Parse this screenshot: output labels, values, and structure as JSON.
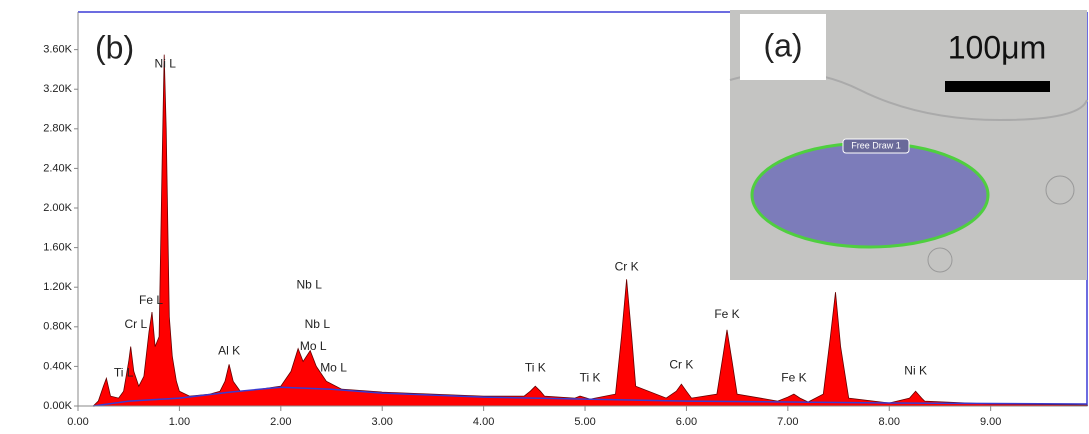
{
  "chart_data": {
    "type": "spectrum",
    "panel_label": "(b)",
    "xlim": [
      0,
      9.95
    ],
    "ylim": [
      0,
      3.98
    ],
    "xticks": [
      {
        "value": 0,
        "label": "0.00"
      },
      {
        "value": 1,
        "label": "1.00"
      },
      {
        "value": 2,
        "label": "2.00"
      },
      {
        "value": 3,
        "label": "3.00"
      },
      {
        "value": 4,
        "label": "4.00"
      },
      {
        "value": 5,
        "label": "5.00"
      },
      {
        "value": 6,
        "label": "6.00"
      },
      {
        "value": 7,
        "label": "7.00"
      },
      {
        "value": 8,
        "label": "8.00"
      },
      {
        "value": 9,
        "label": "9.00"
      }
    ],
    "yticks": [
      {
        "value": 0,
        "label": "0.00K"
      },
      {
        "value": 0.4,
        "label": "0.40K"
      },
      {
        "value": 0.8,
        "label": "0.80K"
      },
      {
        "value": 1.2,
        "label": "1.20K"
      },
      {
        "value": 1.6,
        "label": "1.60K"
      },
      {
        "value": 2.0,
        "label": "2.00K"
      },
      {
        "value": 2.4,
        "label": "2.40K"
      },
      {
        "value": 2.8,
        "label": "2.80K"
      },
      {
        "value": 3.2,
        "label": "3.20K"
      },
      {
        "value": 3.6,
        "label": "3.60K"
      }
    ],
    "series": [
      {
        "color": "#ff0000",
        "fill": true,
        "x": [
          0.15,
          0.2,
          0.25,
          0.28,
          0.32,
          0.4,
          0.45,
          0.5,
          0.52,
          0.55,
          0.6,
          0.65,
          0.7,
          0.73,
          0.76,
          0.8,
          0.83,
          0.85,
          0.87,
          0.9,
          0.93,
          0.97,
          1.0,
          1.1,
          1.2,
          1.3,
          1.4,
          1.45,
          1.49,
          1.53,
          1.6,
          1.8,
          2.0,
          2.1,
          2.17,
          2.22,
          2.29,
          2.35,
          2.45,
          2.6,
          3.0,
          3.5,
          4.0,
          4.4,
          4.46,
          4.51,
          4.56,
          4.6,
          4.9,
          4.95,
          5.05,
          5.3,
          5.36,
          5.41,
          5.46,
          5.5,
          5.8,
          5.9,
          5.95,
          6.0,
          6.05,
          6.3,
          6.36,
          6.4,
          6.45,
          6.5,
          6.9,
          7.0,
          7.06,
          7.12,
          7.2,
          7.35,
          7.42,
          7.47,
          7.52,
          7.6,
          8.0,
          8.2,
          8.26,
          8.32,
          8.35,
          9.0,
          9.95
        ],
        "values": [
          0,
          0.05,
          0.2,
          0.28,
          0.1,
          0.08,
          0.15,
          0.45,
          0.6,
          0.35,
          0.2,
          0.3,
          0.75,
          0.95,
          0.6,
          0.7,
          2.5,
          3.55,
          2.8,
          0.9,
          0.5,
          0.25,
          0.15,
          0.1,
          0.11,
          0.12,
          0.15,
          0.25,
          0.42,
          0.25,
          0.15,
          0.17,
          0.2,
          0.35,
          0.58,
          0.45,
          0.56,
          0.4,
          0.25,
          0.17,
          0.14,
          0.12,
          0.1,
          0.1,
          0.15,
          0.2,
          0.15,
          0.1,
          0.08,
          0.1,
          0.07,
          0.12,
          0.7,
          1.28,
          0.7,
          0.2,
          0.08,
          0.15,
          0.22,
          0.15,
          0.08,
          0.12,
          0.5,
          0.77,
          0.45,
          0.12,
          0.05,
          0.09,
          0.12,
          0.08,
          0.04,
          0.12,
          0.7,
          1.15,
          0.6,
          0.08,
          0.03,
          0.08,
          0.15,
          0.08,
          0.05,
          0.02,
          0.01
        ]
      },
      {
        "color": "#3a3ad0",
        "fill": false,
        "x": [
          0.15,
          0.5,
          1.0,
          1.5,
          2.0,
          2.5,
          3.0,
          4.0,
          5.0,
          6.0,
          7.0,
          8.0,
          9.95
        ],
        "values": [
          0,
          0.05,
          0.08,
          0.14,
          0.19,
          0.17,
          0.13,
          0.09,
          0.07,
          0.05,
          0.04,
          0.03,
          0.02
        ]
      }
    ],
    "annotations": [
      {
        "text": "Ti L",
        "x": 0.45,
        "y": 0.33
      },
      {
        "text": "Cr L",
        "x": 0.57,
        "y": 0.82
      },
      {
        "text": "Fe L",
        "x": 0.72,
        "y": 1.06
      },
      {
        "text": "Ni L",
        "x": 0.86,
        "y": 3.45
      },
      {
        "text": "Al K",
        "x": 1.49,
        "y": 0.55
      },
      {
        "text": "Nb L",
        "x": 2.28,
        "y": 1.22
      },
      {
        "text": "Nb L",
        "x": 2.36,
        "y": 0.82
      },
      {
        "text": "Mo L",
        "x": 2.32,
        "y": 0.6
      },
      {
        "text": "Mo L",
        "x": 2.52,
        "y": 0.38
      },
      {
        "text": "Ti K",
        "x": 4.51,
        "y": 0.38
      },
      {
        "text": "Ti K",
        "x": 5.05,
        "y": 0.28
      },
      {
        "text": "Cr K",
        "x": 5.41,
        "y": 1.4
      },
      {
        "text": "Cr K",
        "x": 5.95,
        "y": 0.41
      },
      {
        "text": "Fe K",
        "x": 6.4,
        "y": 0.92
      },
      {
        "text": "Fe K",
        "x": 7.06,
        "y": 0.28
      },
      {
        "text": "Ni K",
        "x": 8.26,
        "y": 0.35
      }
    ]
  },
  "inset": {
    "label": "(a)",
    "scale_bar": "100μm",
    "region_label": "Free Draw 1"
  }
}
